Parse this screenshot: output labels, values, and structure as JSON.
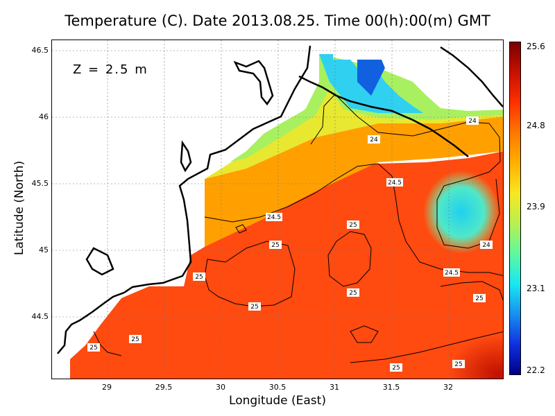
{
  "title": "Temperature (C). Date 2013.08.25. Time 00(h):00(m) GMT",
  "depth_label": "Z = 2.5 m",
  "axes": {
    "xlabel": "Longitude (East)",
    "ylabel": "Latitude (North)",
    "x_ticks": [
      "29",
      "29.5",
      "30",
      "30.5",
      "31",
      "31.5",
      "32"
    ],
    "y_ticks": [
      "46.5",
      "46",
      "45.5",
      "45",
      "44.5"
    ]
  },
  "colorbar": {
    "ticks": [
      "25.6",
      "24.8",
      "23.9",
      "23.1",
      "22.2"
    ],
    "colors": [
      "#7a0000",
      "#ff3000",
      "#ffb000",
      "#f8e820",
      "#18e8f0",
      "#1030e0",
      "#000088"
    ]
  },
  "contour_labels": [
    "24",
    "24",
    "24.5",
    "24.5",
    "24",
    "25",
    "25",
    "25",
    "25",
    "24.5",
    "25",
    "25",
    "25",
    "25",
    "25",
    "25"
  ],
  "chart_data": {
    "type": "heatmap",
    "variable": "Temperature (C)",
    "date": "2013.08.25",
    "time": "00(h):00(m) GMT",
    "depth": "Z = 2.5 m",
    "xlim": [
      28.55,
      32.48
    ],
    "ylim": [
      44.07,
      46.58
    ],
    "x_ticks": [
      29,
      29.5,
      30,
      30.5,
      31,
      31.5,
      32
    ],
    "y_ticks": [
      46.5,
      46,
      45.5,
      45,
      44.5
    ],
    "color_range": [
      22.2,
      25.6
    ],
    "contour_levels": [
      24,
      24.5,
      25
    ],
    "grid": true
  }
}
